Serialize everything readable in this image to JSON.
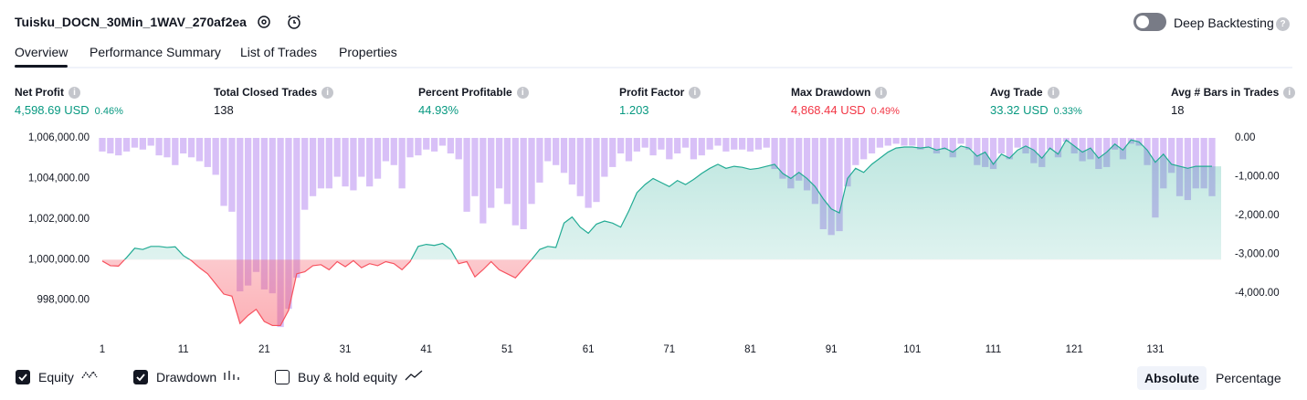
{
  "header": {
    "title": "Tuisku_DOCN_30Min_1WAV_270af2ea",
    "toggle_label": "Deep Backtesting",
    "toggle_on": false
  },
  "tabs": {
    "items": [
      "Overview",
      "Performance Summary",
      "List of Trades",
      "Properties"
    ],
    "active": 0
  },
  "metrics": [
    {
      "label": "Net Profit",
      "value": "4,598.69 USD",
      "percent": "0.46%",
      "color": "#089981"
    },
    {
      "label": "Total Closed Trades",
      "value": "138",
      "color": "#131722"
    },
    {
      "label": "Percent Profitable",
      "value": "44.93%",
      "color": "#089981"
    },
    {
      "label": "Profit Factor",
      "value": "1.203",
      "color": "#089981"
    },
    {
      "label": "Max Drawdown",
      "value": "4,868.44 USD",
      "percent": "0.49%",
      "color": "#f23645"
    },
    {
      "label": "Avg Trade",
      "value": "33.32 USD",
      "percent": "0.33%",
      "color": "#089981"
    },
    {
      "label": "Avg # Bars in Trades",
      "value": "18",
      "color": "#131722"
    }
  ],
  "chart_data": {
    "type": "combo",
    "x": [
      1,
      2,
      3,
      4,
      5,
      6,
      7,
      8,
      9,
      10,
      11,
      12,
      13,
      14,
      15,
      16,
      17,
      18,
      19,
      20,
      21,
      22,
      23,
      24,
      25,
      26,
      27,
      28,
      29,
      30,
      31,
      32,
      33,
      34,
      35,
      36,
      37,
      38,
      39,
      40,
      41,
      42,
      43,
      44,
      45,
      46,
      47,
      48,
      49,
      50,
      51,
      52,
      53,
      54,
      55,
      56,
      57,
      58,
      59,
      60,
      61,
      62,
      63,
      64,
      65,
      66,
      67,
      68,
      69,
      70,
      71,
      72,
      73,
      74,
      75,
      76,
      77,
      78,
      79,
      80,
      81,
      82,
      83,
      84,
      85,
      86,
      87,
      88,
      89,
      90,
      91,
      92,
      93,
      94,
      95,
      96,
      97,
      98,
      99,
      100,
      101,
      102,
      103,
      104,
      105,
      106,
      107,
      108,
      109,
      110,
      111,
      112,
      113,
      114,
      115,
      116,
      117,
      118,
      119,
      120,
      121,
      122,
      123,
      124,
      125,
      126,
      127,
      128,
      129,
      130,
      131,
      132,
      133,
      134,
      135,
      136,
      137,
      138
    ],
    "xlim": [
      1,
      138
    ],
    "xticks": [
      1,
      11,
      21,
      31,
      41,
      51,
      61,
      71,
      81,
      91,
      101,
      111,
      121,
      131
    ],
    "ylim": [
      996500,
      1006000
    ],
    "yticks": [
      {
        "value": 1006000,
        "label": "1,006,000.00"
      },
      {
        "value": 1004000,
        "label": "1,004,000.00"
      },
      {
        "value": 1002000,
        "label": "1,002,000.00"
      },
      {
        "value": 1000000,
        "label": "1,000,000.00"
      },
      {
        "value": 998000,
        "label": "998,000.00"
      }
    ],
    "y2lim": [
      -4960,
      0
    ],
    "y2ticks": [
      {
        "value": 0,
        "label": "0.00"
      },
      {
        "value": -1000,
        "label": "-1,000.00"
      },
      {
        "value": -2000,
        "label": "-2,000.00"
      },
      {
        "value": -3000,
        "label": "-3,000.00"
      },
      {
        "value": -4000,
        "label": "-4,000.00"
      }
    ],
    "series": [
      {
        "name": "Equity",
        "type": "line",
        "axis": "y",
        "visible": true,
        "color": "#22ab94",
        "negative_color": "#f7525f",
        "values": [
          999930,
          999700,
          999680,
          1000100,
          1000560,
          1000500,
          1000650,
          1000650,
          1000600,
          1000630,
          1000200,
          999950,
          999600,
          999300,
          998800,
          998300,
          998200,
          996850,
          997250,
          997550,
          996950,
          996750,
          996750,
          997500,
          999300,
          999400,
          999700,
          999750,
          999500,
          999900,
          999650,
          999950,
          999600,
          999800,
          999700,
          999900,
          999800,
          999500,
          999900,
          1000650,
          1000750,
          1000700,
          1000800,
          1000500,
          999800,
          999900,
          999150,
          999500,
          999900,
          999500,
          999300,
          999100,
          999550,
          1000000,
          1000500,
          1000650,
          1000600,
          1001800,
          1002100,
          1001600,
          1001300,
          1001750,
          1001900,
          1001800,
          1001600,
          1002400,
          1003300,
          1003700,
          1004000,
          1003800,
          1003600,
          1003900,
          1003700,
          1003950,
          1004250,
          1004500,
          1004700,
          1004500,
          1004600,
          1004550,
          1004450,
          1004500,
          1004600,
          1004700,
          1004250,
          1004000,
          1004300,
          1004000,
          1003600,
          1003000,
          1002500,
          1002300,
          1004000,
          1004500,
          1004300,
          1004700,
          1005000,
          1005300,
          1005500,
          1005550,
          1005550,
          1005500,
          1005550,
          1005400,
          1005500,
          1005300,
          1005600,
          1005500,
          1005100,
          1005300,
          1004700,
          1005200,
          1005000,
          1005400,
          1005600,
          1005400,
          1005000,
          1005500,
          1005200,
          1005900,
          1005600,
          1005300,
          1005500,
          1005000,
          1005300,
          1005700,
          1005400,
          1005900,
          1005800,
          1005400,
          1004800,
          1005200,
          1004700,
          1004600,
          1004500,
          1004600,
          1004600,
          1004598.69
        ]
      },
      {
        "name": "Drawdown",
        "type": "bar",
        "axis": "y2",
        "visible": true,
        "color": "rgba(178,130,240,0.5)",
        "values": [
          -350,
          -400,
          -450,
          -350,
          -250,
          -300,
          -200,
          -450,
          -500,
          -700,
          -400,
          -500,
          -600,
          -750,
          -950,
          -1750,
          -1900,
          -3950,
          -3800,
          -3450,
          -3900,
          -4000,
          -4868.44,
          -4400,
          -3600,
          -1850,
          -1500,
          -1300,
          -1300,
          -1000,
          -1250,
          -1350,
          -1000,
          -1250,
          -1050,
          -600,
          -700,
          -1300,
          -500,
          -450,
          -300,
          -350,
          -200,
          -400,
          -550,
          -1900,
          -1500,
          -2200,
          -1800,
          -1300,
          -1700,
          -2250,
          -2350,
          -1700,
          -1150,
          -600,
          -700,
          -900,
          -1200,
          -1500,
          -1800,
          -1650,
          -1000,
          -750,
          -400,
          -600,
          -350,
          -250,
          -450,
          -300,
          -550,
          -400,
          -250,
          -550,
          -450,
          -300,
          -200,
          -350,
          -300,
          -300,
          -350,
          -300,
          -250,
          -800,
          -1050,
          -1300,
          -1100,
          -1350,
          -1700,
          -2350,
          -2500,
          -2400,
          -1250,
          -700,
          -550,
          -400,
          -250,
          -200,
          -150,
          -200,
          -200,
          -300,
          -250,
          -400,
          -300,
          -500,
          -150,
          -300,
          -700,
          -750,
          -800,
          -400,
          -550,
          -250,
          -400,
          -650,
          -750,
          -300,
          -500,
          -100,
          -400,
          -600,
          -550,
          -800,
          -750,
          -300,
          -550,
          -150,
          -200,
          -700,
          -2050,
          -1300,
          -900,
          -1500,
          -1600,
          -1300,
          -1300,
          -1500
        ]
      }
    ],
    "inactive_series": [
      {
        "name": "Buy & hold equity",
        "visible": false
      }
    ],
    "scale_buttons": {
      "items": [
        "Absolute",
        "Percentage"
      ],
      "active": 0
    }
  }
}
